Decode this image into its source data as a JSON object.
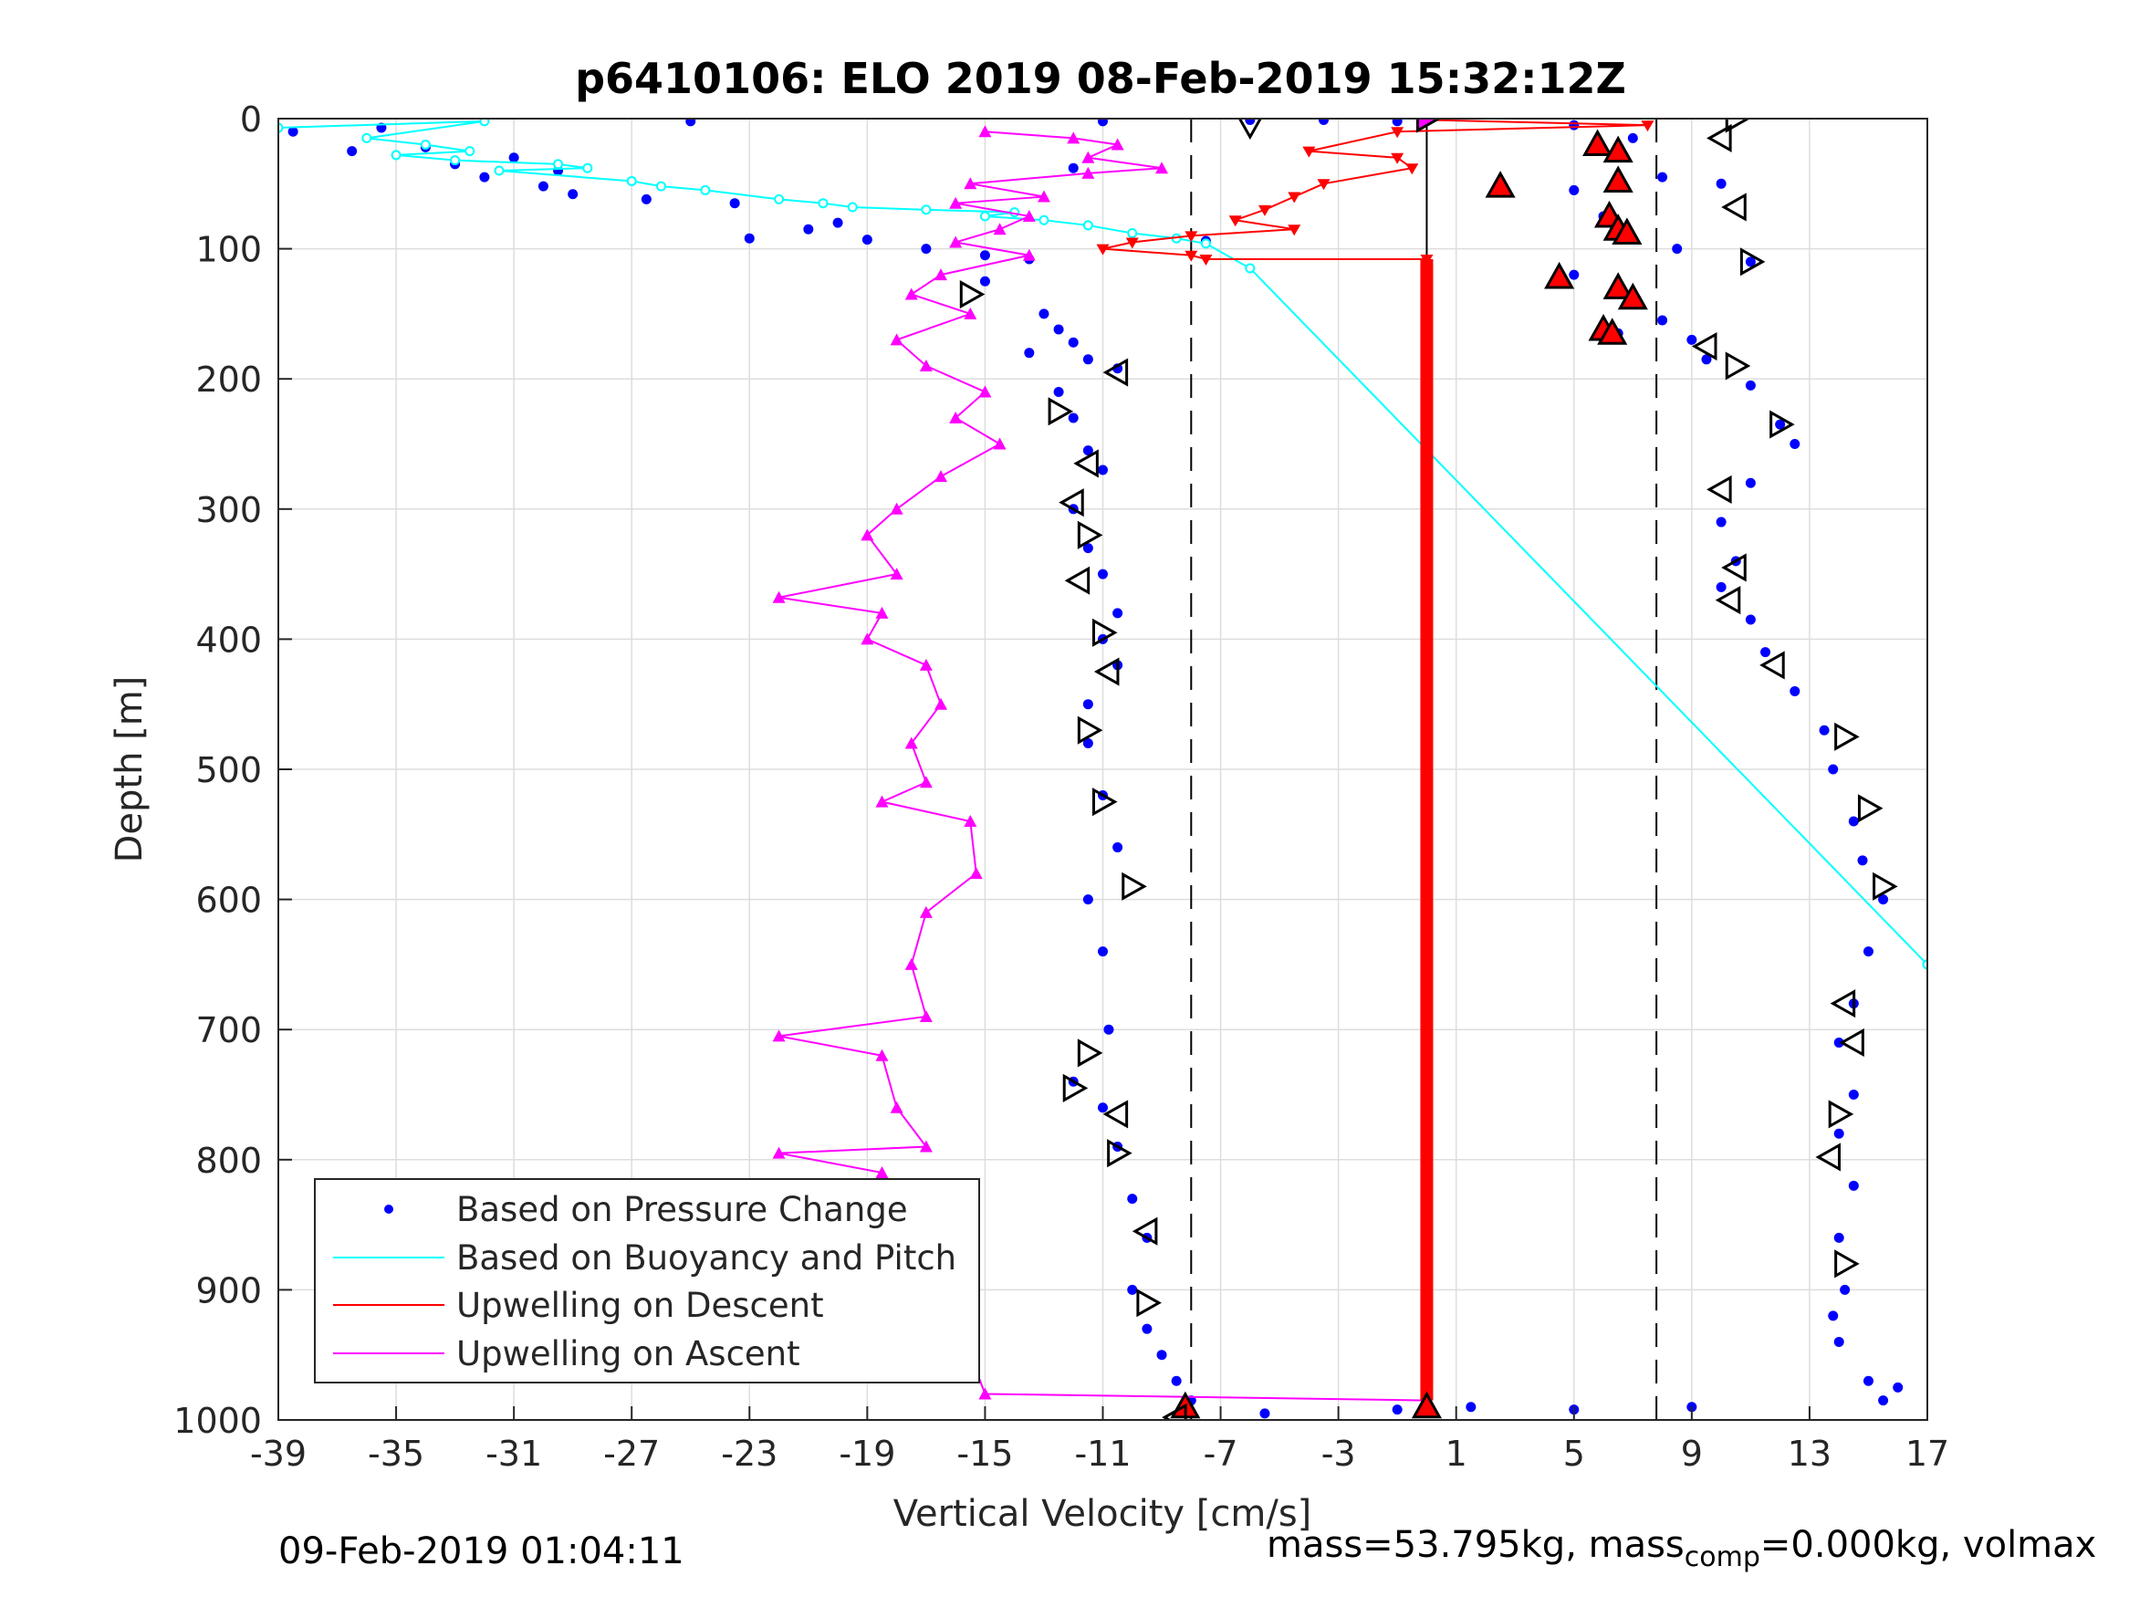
{
  "chart_data": {
    "type": "scatter",
    "title": "p6410106: ELO 2019 08-Feb-2019 15:32:12Z",
    "xlabel": "Vertical Velocity [cm/s]",
    "ylabel": "Depth [m]",
    "xlim": [
      -39,
      17
    ],
    "ylim": [
      0,
      1000
    ],
    "y_reversed": true,
    "grid": true,
    "legend_position": "bottom-left",
    "xticks": [
      -39,
      -35,
      -31,
      -27,
      -23,
      -19,
      -15,
      -11,
      -7,
      -3,
      1,
      5,
      9,
      13,
      17
    ],
    "yticks": [
      0,
      100,
      200,
      300,
      400,
      500,
      600,
      700,
      800,
      900,
      1000
    ],
    "reference_lines": {
      "dashed_x": [
        -8,
        7.8
      ],
      "solid_x": 0
    },
    "legend": [
      {
        "label": "Based on Pressure Change",
        "color": "#0000ff",
        "marker": "dot"
      },
      {
        "label": "Based on Buoyancy and Pitch",
        "color": "#00ffff",
        "marker": "line"
      },
      {
        "label": "Upwelling on Descent",
        "color": "#ff0000",
        "marker": "line"
      },
      {
        "label": "Upwelling on Ascent",
        "color": "#ff00ff",
        "marker": "line"
      }
    ],
    "series": [
      {
        "name": "Based on Pressure Change",
        "color": "#0000ff",
        "kind": "dots",
        "points": [
          [
            -38.5,
            10
          ],
          [
            -35.5,
            7
          ],
          [
            -34,
            22
          ],
          [
            -36.5,
            25
          ],
          [
            -33,
            35
          ],
          [
            -31,
            30
          ],
          [
            -29.5,
            40
          ],
          [
            -32,
            45
          ],
          [
            -30,
            52
          ],
          [
            -29,
            58
          ],
          [
            -26.5,
            62
          ],
          [
            -23.5,
            65
          ],
          [
            -20,
            80
          ],
          [
            -23,
            92
          ],
          [
            -21,
            85
          ],
          [
            -19,
            93
          ],
          [
            -17,
            100
          ],
          [
            -15,
            105
          ],
          [
            -13.5,
            108
          ],
          [
            -15,
            125
          ],
          [
            -13,
            150
          ],
          [
            -12.5,
            162
          ],
          [
            -12,
            172
          ],
          [
            -13.5,
            180
          ],
          [
            -11.5,
            185
          ],
          [
            -10.5,
            192
          ],
          [
            -12.5,
            210
          ],
          [
            -12,
            230
          ],
          [
            -11.5,
            255
          ],
          [
            -11,
            270
          ],
          [
            -12,
            300
          ],
          [
            -11.5,
            330
          ],
          [
            -11,
            350
          ],
          [
            -10.5,
            380
          ],
          [
            -11,
            400
          ],
          [
            -10.5,
            420
          ],
          [
            -11.5,
            450
          ],
          [
            -11.5,
            480
          ],
          [
            -11,
            520
          ],
          [
            -10.5,
            560
          ],
          [
            -11.5,
            600
          ],
          [
            -11,
            640
          ],
          [
            -10.8,
            700
          ],
          [
            -12,
            740
          ],
          [
            -11,
            760
          ],
          [
            -10.5,
            790
          ],
          [
            -10,
            830
          ],
          [
            -9.5,
            860
          ],
          [
            -10,
            900
          ],
          [
            -9.5,
            930
          ],
          [
            -9,
            950
          ],
          [
            -8.5,
            970
          ],
          [
            -8,
            985
          ],
          [
            -8.2,
            990
          ],
          [
            -25,
            2
          ],
          [
            -11,
            2
          ],
          [
            -1,
            2
          ],
          [
            -12,
            38
          ],
          [
            -7.5,
            94
          ],
          [
            -3.5,
            1
          ],
          [
            -6,
            1
          ],
          [
            -1,
            992
          ],
          [
            1.5,
            990
          ],
          [
            -5.5,
            995
          ],
          [
            5,
            992
          ],
          [
            9,
            990
          ],
          [
            5,
            5
          ],
          [
            7,
            15
          ],
          [
            8,
            45
          ],
          [
            5,
            55
          ],
          [
            10,
            50
          ],
          [
            6,
            75
          ],
          [
            6.5,
            88
          ],
          [
            8.5,
            100
          ],
          [
            11,
            110
          ],
          [
            5,
            120
          ],
          [
            6.5,
            130
          ],
          [
            6.5,
            165
          ],
          [
            8,
            155
          ],
          [
            9,
            170
          ],
          [
            9.5,
            185
          ],
          [
            11,
            205
          ],
          [
            12,
            235
          ],
          [
            12.5,
            250
          ],
          [
            11,
            280
          ],
          [
            10,
            310
          ],
          [
            10.5,
            340
          ],
          [
            10,
            360
          ],
          [
            11,
            385
          ],
          [
            11.5,
            410
          ],
          [
            12.5,
            440
          ],
          [
            13.5,
            470
          ],
          [
            13.8,
            500
          ],
          [
            14.5,
            540
          ],
          [
            14.8,
            570
          ],
          [
            15.5,
            600
          ],
          [
            15,
            640
          ],
          [
            14.5,
            680
          ],
          [
            14,
            710
          ],
          [
            14.5,
            750
          ],
          [
            14,
            780
          ],
          [
            14.5,
            820
          ],
          [
            14,
            860
          ],
          [
            14.2,
            900
          ],
          [
            14,
            940
          ],
          [
            15,
            970
          ],
          [
            15.5,
            985
          ],
          [
            16,
            975
          ],
          [
            13.8,
            920
          ]
        ]
      },
      {
        "name": "Based on Buoyancy and Pitch",
        "color": "#00ffff",
        "kind": "line",
        "points": [
          [
            -39,
            7
          ],
          [
            -32,
            2
          ],
          [
            -36,
            15
          ],
          [
            -34,
            20
          ],
          [
            -32.5,
            25
          ],
          [
            -35,
            28
          ],
          [
            -33,
            32
          ],
          [
            -29.5,
            35
          ],
          [
            -28.5,
            38
          ],
          [
            -31.5,
            40
          ],
          [
            -27,
            48
          ],
          [
            -26,
            52
          ],
          [
            -24.5,
            55
          ],
          [
            -22,
            62
          ],
          [
            -20.5,
            65
          ],
          [
            -19.5,
            68
          ],
          [
            -17,
            70
          ],
          [
            -14,
            72
          ],
          [
            -15,
            75
          ],
          [
            -13,
            78
          ],
          [
            -11.5,
            82
          ],
          [
            -10,
            88
          ],
          [
            -8.5,
            92
          ],
          [
            -7.5,
            96
          ],
          [
            -6,
            115
          ],
          [
            17,
            650
          ]
        ]
      },
      {
        "name": "Upwelling on Descent",
        "color": "#ff0000",
        "kind": "line",
        "points": [
          [
            0,
            1
          ],
          [
            7.5,
            5
          ],
          [
            -1,
            10
          ],
          [
            -4,
            25
          ],
          [
            -1,
            30
          ],
          [
            -0.5,
            38
          ],
          [
            -3.5,
            50
          ],
          [
            -4.5,
            60
          ],
          [
            -5.5,
            70
          ],
          [
            -6.5,
            78
          ],
          [
            -4.5,
            85
          ],
          [
            -8,
            90
          ],
          [
            -10,
            95
          ],
          [
            -11,
            100
          ],
          [
            -8,
            105
          ],
          [
            -7.5,
            108
          ],
          [
            0,
            108
          ],
          [
            0,
            985
          ]
        ]
      },
      {
        "name": "Upwelling on Ascent",
        "color": "#ff00ff",
        "kind": "line",
        "points": [
          [
            -15,
            10
          ],
          [
            -12,
            15
          ],
          [
            -10.5,
            20
          ],
          [
            -11.5,
            30
          ],
          [
            -9,
            38
          ],
          [
            -11.5,
            42
          ],
          [
            -15.5,
            50
          ],
          [
            -13,
            60
          ],
          [
            -16,
            65
          ],
          [
            -13.5,
            75
          ],
          [
            -14.5,
            85
          ],
          [
            -16,
            95
          ],
          [
            -13.5,
            105
          ],
          [
            -16.5,
            120
          ],
          [
            -17.5,
            135
          ],
          [
            -15.5,
            150
          ],
          [
            -18,
            170
          ],
          [
            -17,
            190
          ],
          [
            -15,
            210
          ],
          [
            -16,
            230
          ],
          [
            -14.5,
            250
          ],
          [
            -16.5,
            275
          ],
          [
            -18,
            300
          ],
          [
            -19,
            320
          ],
          [
            -18,
            350
          ],
          [
            -22,
            368
          ],
          [
            -18.5,
            380
          ],
          [
            -19,
            400
          ],
          [
            -17,
            420
          ],
          [
            -16.5,
            450
          ],
          [
            -17.5,
            480
          ],
          [
            -17,
            510
          ],
          [
            -18.5,
            525
          ],
          [
            -15.5,
            540
          ],
          [
            -15.3,
            580
          ],
          [
            -17,
            610
          ],
          [
            -17.5,
            650
          ],
          [
            -17,
            690
          ],
          [
            -22,
            705
          ],
          [
            -18.5,
            720
          ],
          [
            -18,
            760
          ],
          [
            -17,
            790
          ],
          [
            -22,
            795
          ],
          [
            -18.5,
            810
          ],
          [
            -17.5,
            850
          ],
          [
            -17,
            880
          ],
          [
            -16.5,
            920
          ],
          [
            -15.5,
            950
          ],
          [
            -15,
            980
          ],
          [
            0,
            985
          ]
        ]
      },
      {
        "name": "Red Triangles",
        "color": "#ff0000",
        "kind": "triangles",
        "points": [
          [
            0,
            990
          ],
          [
            -8.2,
            990
          ],
          [
            2.5,
            52
          ],
          [
            4.5,
            122
          ],
          [
            5.8,
            20
          ],
          [
            6.5,
            25
          ],
          [
            6.5,
            48
          ],
          [
            6.2,
            75
          ],
          [
            6.5,
            85
          ],
          [
            6.8,
            88
          ],
          [
            6.5,
            130
          ],
          [
            7,
            138
          ],
          [
            6,
            162
          ],
          [
            6.3,
            165
          ]
        ]
      },
      {
        "name": "Open Triangles",
        "color": "#000000",
        "kind": "open-triangles",
        "points": [
          [
            -6,
            5,
            "down"
          ],
          [
            0,
            0,
            "right"
          ],
          [
            10.5,
            0,
            "right"
          ],
          [
            10,
            15,
            "left"
          ],
          [
            10.5,
            68,
            "left"
          ],
          [
            11,
            110,
            "right"
          ],
          [
            -15.5,
            135,
            "right"
          ],
          [
            -10.5,
            195,
            "left"
          ],
          [
            -12.5,
            225,
            "right"
          ],
          [
            -11.5,
            265,
            "left"
          ],
          [
            -12,
            295,
            "left"
          ],
          [
            -11.5,
            320,
            "right"
          ],
          [
            -11.8,
            355,
            "left"
          ],
          [
            -11,
            395,
            "right"
          ],
          [
            -10.8,
            425,
            "left"
          ],
          [
            -11.5,
            470,
            "right"
          ],
          [
            -11,
            525,
            "right"
          ],
          [
            -10,
            590,
            "right"
          ],
          [
            9.5,
            175,
            "left"
          ],
          [
            10.5,
            190,
            "right"
          ],
          [
            12,
            235,
            "right"
          ],
          [
            10,
            285,
            "left"
          ],
          [
            10.5,
            345,
            "left"
          ],
          [
            10.3,
            370,
            "left"
          ],
          [
            11.8,
            420,
            "left"
          ],
          [
            14.2,
            475,
            "right"
          ],
          [
            15,
            530,
            "right"
          ],
          [
            15.5,
            590,
            "right"
          ],
          [
            14.2,
            680,
            "left"
          ],
          [
            14.5,
            710,
            "left"
          ],
          [
            14,
            765,
            "right"
          ],
          [
            13.7,
            798,
            "left"
          ],
          [
            14.2,
            880,
            "right"
          ],
          [
            -11.5,
            718,
            "right"
          ],
          [
            -12,
            745,
            "right"
          ],
          [
            -10.5,
            765,
            "left"
          ],
          [
            -10.5,
            795,
            "right"
          ],
          [
            -9.5,
            855,
            "left"
          ],
          [
            -9.5,
            910,
            "right"
          ],
          [
            -8.5,
            998,
            "left"
          ]
        ]
      }
    ]
  },
  "footer": {
    "timestamp": "09-Feb-2019 01:04:11",
    "mass_prefix": "mass=53.795kg, mass",
    "mass_sub": "comp",
    "mass_suffix": "=0.000kg, volmax"
  }
}
